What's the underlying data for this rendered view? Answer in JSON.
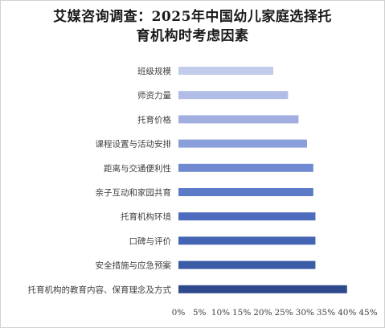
{
  "chart_data": {
    "type": "bar",
    "orientation": "horizontal",
    "title": "艾媒咨询调查：2025年中国幼儿家庭选择托育机构时考虑因素",
    "title_lines": [
      "艾媒咨询调查：2025年中国幼儿家庭选择托",
      "育机构时考虑因素"
    ],
    "categories": [
      "班级规模",
      "师资力量",
      "托育价格",
      "课程设置与活动安排",
      "距离与交通便利性",
      "亲子互动和家园共育",
      "托育机构环境",
      "口碑与评价",
      "安全措施与应急预案",
      "托育机构的教育内容、保育理念及方式"
    ],
    "values": [
      22.5,
      26.0,
      28.5,
      30.5,
      32.0,
      32.0,
      32.5,
      32.5,
      32.5,
      40.0
    ],
    "xlim": [
      0,
      45
    ],
    "xticks": [
      "0%",
      "5%",
      "10%",
      "15%",
      "20%",
      "25%",
      "30%",
      "35%",
      "40%",
      "45%"
    ],
    "xlabel": "",
    "ylabel": "",
    "grid": false,
    "legend": "none",
    "colors": [
      "#c2cbea",
      "#b1bde6",
      "#a0afe0",
      "#8a9ed9",
      "#6f8ad1",
      "#5b7ac8",
      "#4c6dbd",
      "#4465b3",
      "#3c5ba6",
      "#2f4a8c"
    ]
  }
}
